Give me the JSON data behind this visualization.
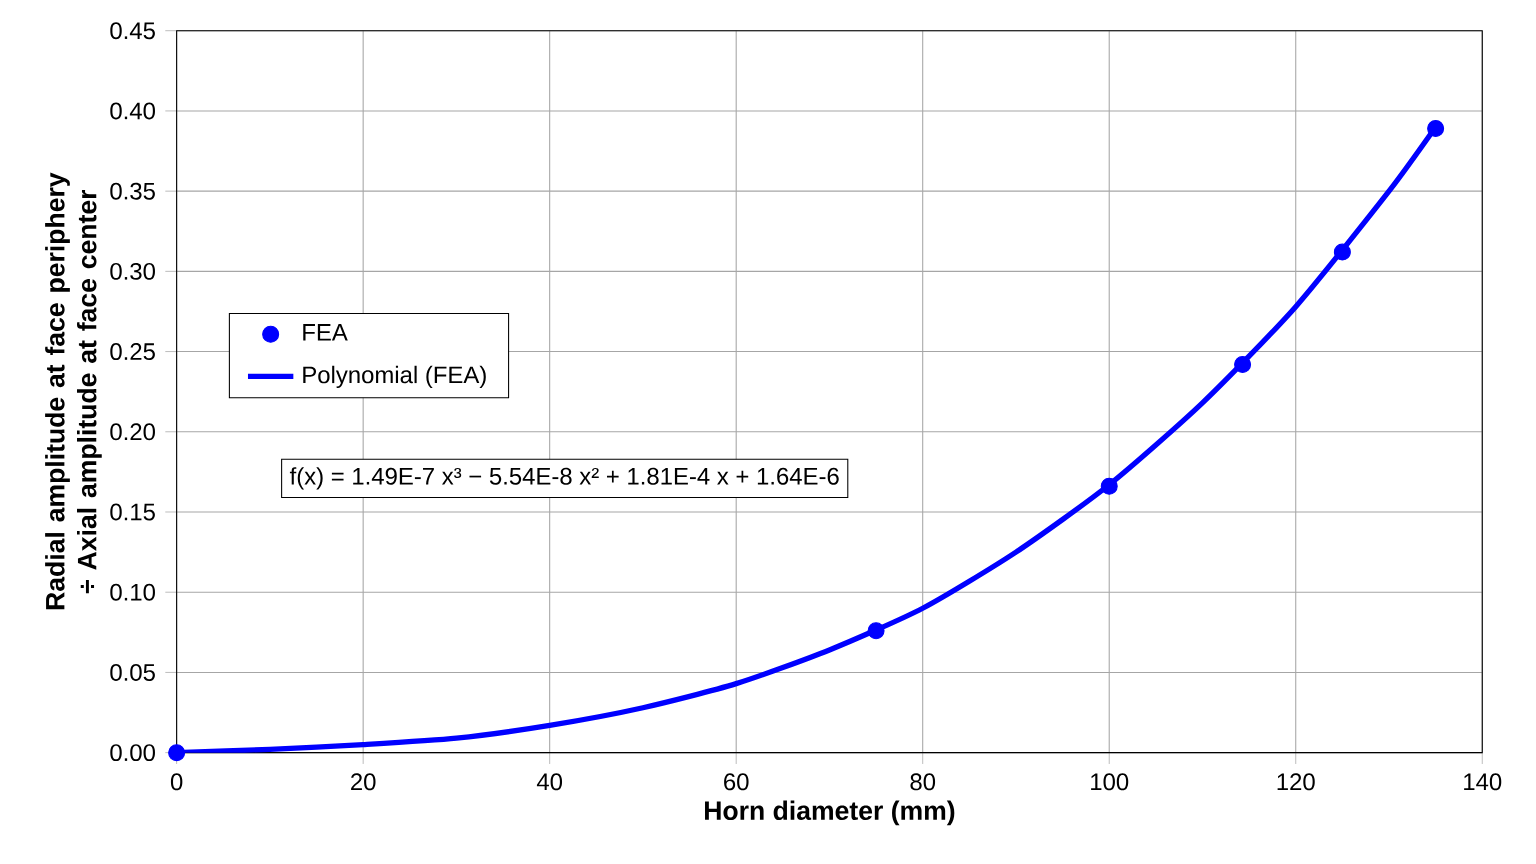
{
  "chart_data": {
    "type": "scatter",
    "xlabel": "Horn diameter (mm)",
    "ylabel": "Radial amplitude at face periphery ÷ Axial amplitude at face center",
    "series": [
      {
        "name": "FEA",
        "color": "#0000ff",
        "marker": "circle",
        "x": [
          0,
          75,
          100,
          114.3,
          125,
          135
        ],
        "values": [
          0,
          0.076,
          0.166,
          0.242,
          0.312,
          0.389
        ]
      },
      {
        "name": "Polynomial (FEA)",
        "type": "line",
        "color": "#0000ff",
        "marker": "none",
        "line_style": "solid",
        "x": [
          0,
          10,
          20,
          30,
          40,
          50,
          60,
          70,
          80,
          90,
          100,
          110,
          120,
          130,
          135
        ],
        "values": [
          0,
          0.002,
          0.005,
          0.009,
          0.017,
          0.028,
          0.043,
          0.064,
          0.09,
          0.125,
          0.167,
          0.218,
          0.278,
          0.35,
          0.39
        ]
      }
    ],
    "annotations": [
      "f(x) = 1.49E-7 x³ − 5.54E-8 x² + 1.81E-4 x + 1.64E-6"
    ],
    "xlim": [
      0,
      140
    ],
    "xticks": [
      0,
      20,
      40,
      60,
      80,
      100,
      120,
      140
    ],
    "ylim": [
      0,
      0.45
    ],
    "yticks": [
      {
        "value": 0,
        "label": "0.00"
      },
      {
        "value": 0.05,
        "label": "0.05"
      },
      {
        "value": 0.1,
        "label": "0.10"
      },
      {
        "value": 0.15,
        "label": "0.15"
      },
      {
        "value": 0.2,
        "label": "0.20"
      },
      {
        "value": 0.25,
        "label": "0.25"
      },
      {
        "value": 0.3,
        "label": "0.30"
      },
      {
        "value": 0.35,
        "label": "0.35"
      },
      {
        "value": 0.4,
        "label": "0.40"
      },
      {
        "value": 0.45,
        "label": "0.45"
      }
    ],
    "grid": true,
    "legend": "left"
  }
}
